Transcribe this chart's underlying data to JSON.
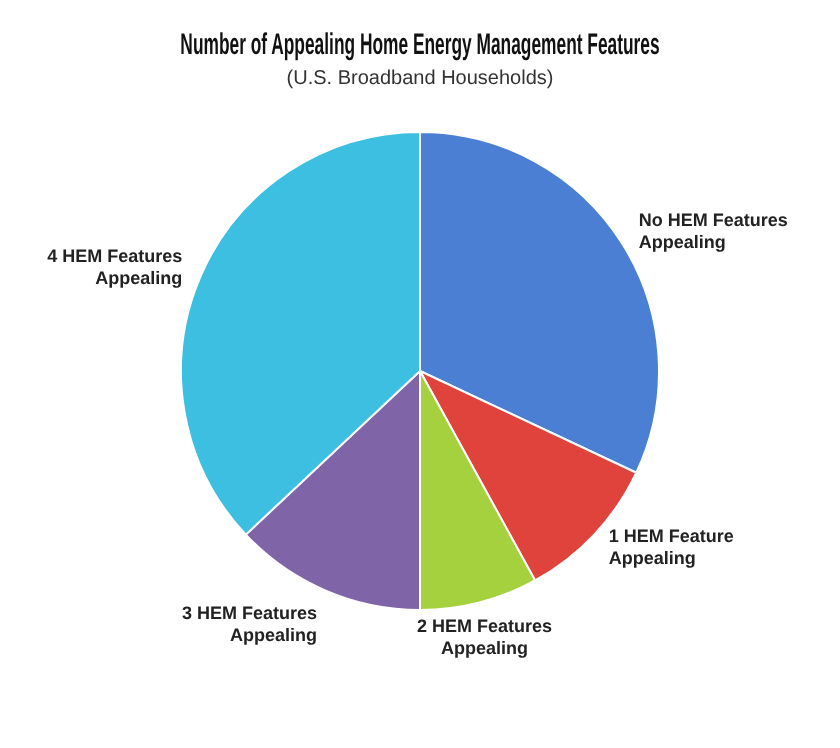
{
  "chart_data": {
    "type": "pie",
    "title": "Number of Appealing Home Energy Management Features",
    "subtitle": "(U.S. Broadband Households)",
    "categories": [
      "No HEM Features Appealing",
      "1 HEM Feature Appealing",
      "2 HEM Features Appealing",
      "3 HEM Features Appealing",
      "4 HEM Features Appealing"
    ],
    "values": [
      32,
      10,
      8,
      13,
      37
    ],
    "colors": [
      "#4a7fd4",
      "#e0433c",
      "#a6d13e",
      "#8064a8",
      "#3cbfe0"
    ],
    "legend": false
  }
}
